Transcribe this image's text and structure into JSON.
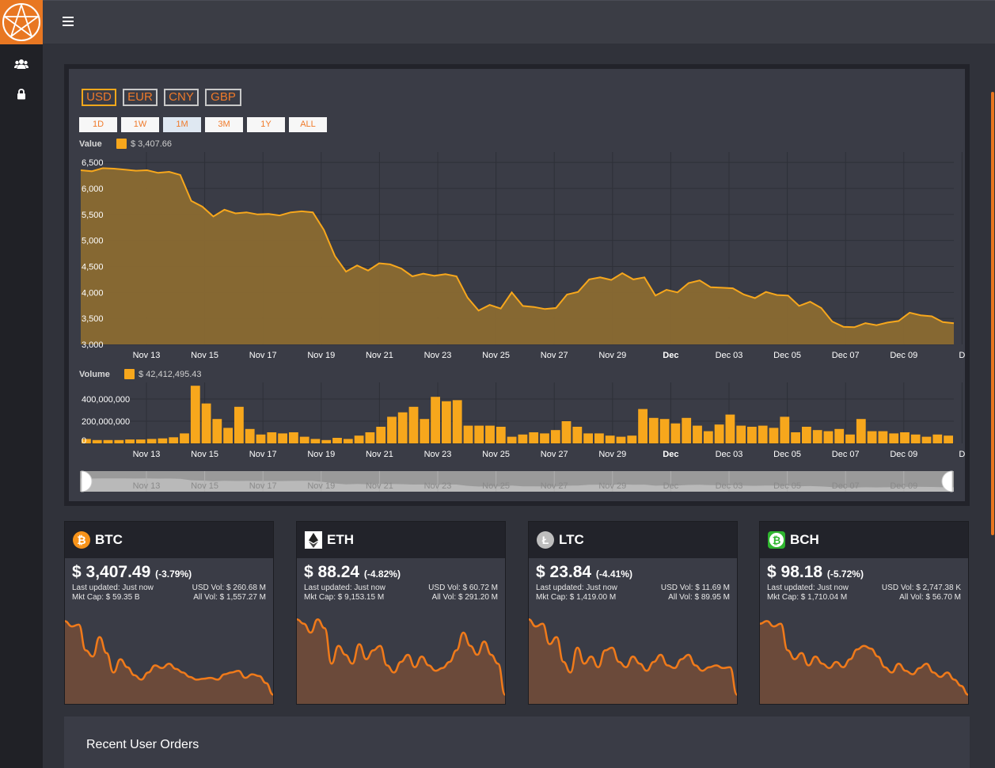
{
  "colors": {
    "accent": "#e87722",
    "series": "#f7a71c",
    "area_fill": "#8a6a32",
    "spark_line": "#f07a1a",
    "spark_fill": "#6b4a3a"
  },
  "sidebar": {
    "items": [
      {
        "name": "users",
        "icon": "users-icon"
      },
      {
        "name": "lock",
        "icon": "lock-icon"
      }
    ]
  },
  "currencies": [
    {
      "label": "USD",
      "active": true
    },
    {
      "label": "EUR",
      "active": false
    },
    {
      "label": "CNY",
      "active": false
    },
    {
      "label": "GBP",
      "active": false
    }
  ],
  "ranges": [
    {
      "label": "1D"
    },
    {
      "label": "1W"
    },
    {
      "label": "1M",
      "active": true
    },
    {
      "label": "3M"
    },
    {
      "label": "1Y"
    },
    {
      "label": "ALL"
    }
  ],
  "legend": {
    "value_title": "Value",
    "value_current": "$ 3,407.66",
    "volume_title": "Volume",
    "volume_current": "$ 42,412,495.43"
  },
  "chart_data": [
    {
      "type": "area",
      "ylim": [
        3000,
        6700
      ],
      "y_ticks": [
        "6,500",
        "6,000",
        "5,500",
        "5,000",
        "4,500",
        "4,000",
        "3,500",
        "3,000"
      ],
      "x_ticks": [
        "Nov 13",
        "Nov 15",
        "Nov 17",
        "Nov 19",
        "Nov 21",
        "Nov 23",
        "Nov 25",
        "Nov 27",
        "Nov 29",
        "Dec",
        "Dec 03",
        "Dec 05",
        "Dec 07",
        "Dec 09",
        "D"
      ],
      "series": [
        {
          "values": [
            6350,
            6330,
            6390,
            6380,
            6360,
            6340,
            6350,
            6300,
            6320,
            6260,
            5760,
            5650,
            5460,
            5590,
            5520,
            5540,
            5500,
            5510,
            5480,
            5540,
            5560,
            5540,
            5200,
            4700,
            4400,
            4520,
            4420,
            4560,
            4540,
            4460,
            4310,
            4360,
            4320,
            4350,
            4310,
            3900,
            3650,
            3760,
            3690,
            4000,
            3740,
            3720,
            3680,
            3700,
            3960,
            4010,
            4250,
            4290,
            4240,
            4370,
            4250,
            4290,
            3940,
            4050,
            4000,
            4180,
            4230,
            4100,
            4090,
            4080,
            3960,
            3890,
            4010,
            3950,
            3940,
            3740,
            3820,
            3700,
            3440,
            3340,
            3330,
            3410,
            3370,
            3420,
            3450,
            3610,
            3560,
            3540,
            3430,
            3407
          ]
        }
      ]
    },
    {
      "type": "bar",
      "ylim": [
        0,
        550000000
      ],
      "y_ticks": [
        "400,000,000",
        "200,000,000",
        "0"
      ],
      "x_ticks": [
        "Nov 13",
        "Nov 15",
        "Nov 17",
        "Nov 19",
        "Nov 21",
        "Nov 23",
        "Nov 25",
        "Nov 27",
        "Nov 29",
        "Dec",
        "Dec 03",
        "Dec 05",
        "Dec 07",
        "Dec 09",
        "D"
      ],
      "series": [
        {
          "values": [
            40,
            30,
            30,
            30,
            35,
            35,
            40,
            45,
            55,
            90,
            520,
            360,
            220,
            140,
            330,
            130,
            80,
            100,
            90,
            100,
            60,
            40,
            30,
            50,
            40,
            70,
            100,
            150,
            240,
            280,
            330,
            220,
            420,
            380,
            390,
            160,
            160,
            160,
            150,
            60,
            80,
            100,
            90,
            120,
            200,
            150,
            90,
            90,
            70,
            60,
            70,
            310,
            230,
            220,
            180,
            230,
            160,
            110,
            170,
            260,
            160,
            150,
            160,
            140,
            240,
            100,
            150,
            120,
            110,
            130,
            80,
            220,
            110,
            110,
            90,
            100,
            80,
            60,
            80,
            70
          ]
        }
      ]
    }
  ],
  "navigator_ticks": [
    "Nov 13",
    "Nov 15",
    "Nov 17",
    "Nov 19",
    "Nov 21",
    "Nov 23",
    "Nov 25",
    "Nov 27",
    "Nov 29",
    "Dec",
    "Dec 03",
    "Dec 05",
    "Dec 07",
    "Dec 09"
  ],
  "coins": [
    {
      "symbol": "BTC",
      "icon": "bitcoin-icon",
      "price": "$ 3,407.49",
      "change": "(-3.79%)",
      "last_updated": "Last updated: Just now",
      "usd_vol": "USD Vol: $ 260.68 M",
      "mkt_cap": "Mkt Cap: $ 59.35 B",
      "all_vol": "All Vol: $ 1,557.27 M",
      "spark": [
        0.88,
        0.82,
        0.84,
        0.55,
        0.48,
        0.7,
        0.52,
        0.3,
        0.45,
        0.36,
        0.27,
        0.22,
        0.3,
        0.38,
        0.35,
        0.4,
        0.34,
        0.3,
        0.25,
        0.22,
        0.23,
        0.24,
        0.22,
        0.28,
        0.3,
        0.32,
        0.24,
        0.28,
        0.26,
        0.18,
        0.05
      ]
    },
    {
      "symbol": "ETH",
      "icon": "ethereum-icon",
      "price": "$ 88.24",
      "change": "(-4.82%)",
      "last_updated": "Last updated: Just now",
      "usd_vol": "USD Vol: $ 60.72 M",
      "mkt_cap": "Mkt Cap: $ 9,153.15 M",
      "all_vol": "All Vol: $ 291.20 M",
      "spark": [
        0.9,
        0.85,
        0.75,
        0.9,
        0.8,
        0.4,
        0.6,
        0.5,
        0.4,
        0.62,
        0.45,
        0.55,
        0.6,
        0.38,
        0.3,
        0.42,
        0.5,
        0.36,
        0.48,
        0.38,
        0.32,
        0.35,
        0.42,
        0.55,
        0.75,
        0.6,
        0.5,
        0.65,
        0.5,
        0.4,
        0.05
      ]
    },
    {
      "symbol": "LTC",
      "icon": "litecoin-icon",
      "price": "$ 23.84",
      "change": "(-4.41%)",
      "last_updated": "Last updated: Just now",
      "usd_vol": "USD Vol: $ 11.69 M",
      "mkt_cap": "Mkt Cap: $ 1,419.00 M",
      "all_vol": "All Vol: $ 89.95 M",
      "spark": [
        0.9,
        0.82,
        0.85,
        0.62,
        0.7,
        0.42,
        0.3,
        0.58,
        0.4,
        0.48,
        0.36,
        0.55,
        0.58,
        0.42,
        0.36,
        0.48,
        0.4,
        0.32,
        0.42,
        0.5,
        0.38,
        0.35,
        0.45,
        0.5,
        0.38,
        0.32,
        0.36,
        0.38,
        0.35,
        0.36,
        0.05
      ]
    },
    {
      "symbol": "BCH",
      "icon": "bitcoincash-icon",
      "price": "$ 98.18",
      "change": "(-5.72%)",
      "last_updated": "Last updated: Just now",
      "usd_vol": "USD Vol: $ 2,747.38 K",
      "mkt_cap": "Mkt Cap: $ 1,710.04 M",
      "all_vol": "All Vol: $ 56.70 M",
      "spark": [
        0.85,
        0.88,
        0.82,
        0.85,
        0.55,
        0.45,
        0.52,
        0.38,
        0.48,
        0.4,
        0.35,
        0.42,
        0.36,
        0.45,
        0.56,
        0.6,
        0.57,
        0.48,
        0.36,
        0.3,
        0.4,
        0.32,
        0.28,
        0.35,
        0.4,
        0.3,
        0.25,
        0.3,
        0.22,
        0.15,
        0.05
      ]
    }
  ],
  "orders": {
    "title": "Recent User Orders"
  }
}
